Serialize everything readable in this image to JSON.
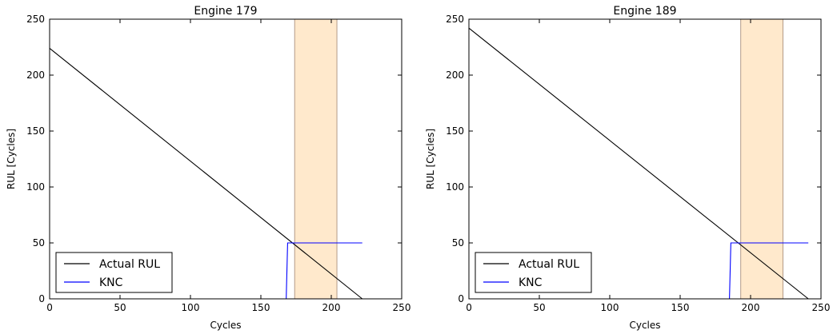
{
  "chart_data": [
    {
      "type": "line",
      "title": "Engine 179",
      "xlabel": "Cycles",
      "ylabel": "RUL [Cycles]",
      "xlim": [
        0,
        250
      ],
      "ylim": [
        0,
        250
      ],
      "xticks": [
        0,
        50,
        100,
        150,
        200,
        250
      ],
      "yticks": [
        0,
        50,
        100,
        150,
        200,
        250
      ],
      "grid": false,
      "legend_position": "lower-left",
      "shaded_band": {
        "x_range": [
          174,
          204
        ],
        "color": "#ffe9cc",
        "edge_color": "#b39b88"
      },
      "series": [
        {
          "name": "Actual RUL",
          "color": "#000000",
          "points": [
            [
              0,
              224
            ],
            [
              222,
              0
            ]
          ]
        },
        {
          "name": "KNC",
          "color": "#0000ff",
          "points": [
            [
              0,
              0
            ],
            [
              168,
              0
            ],
            [
              169,
              50
            ],
            [
              222,
              50
            ]
          ]
        }
      ]
    },
    {
      "type": "line",
      "title": "Engine 189",
      "xlabel": "Cycles",
      "ylabel": "RUL [Cycles]",
      "xlim": [
        0,
        250
      ],
      "ylim": [
        0,
        250
      ],
      "xticks": [
        0,
        50,
        100,
        150,
        200,
        250
      ],
      "yticks": [
        0,
        50,
        100,
        150,
        200,
        250
      ],
      "grid": false,
      "legend_position": "lower-left",
      "shaded_band": {
        "x_range": [
          193,
          223
        ],
        "color": "#ffe9cc",
        "edge_color": "#b39b88"
      },
      "series": [
        {
          "name": "Actual RUL",
          "color": "#000000",
          "points": [
            [
              0,
              242
            ],
            [
              241,
              0
            ]
          ]
        },
        {
          "name": "KNC",
          "color": "#0000ff",
          "points": [
            [
              0,
              0
            ],
            [
              185,
              0
            ],
            [
              186,
              50
            ],
            [
              241,
              50
            ]
          ]
        }
      ]
    }
  ]
}
